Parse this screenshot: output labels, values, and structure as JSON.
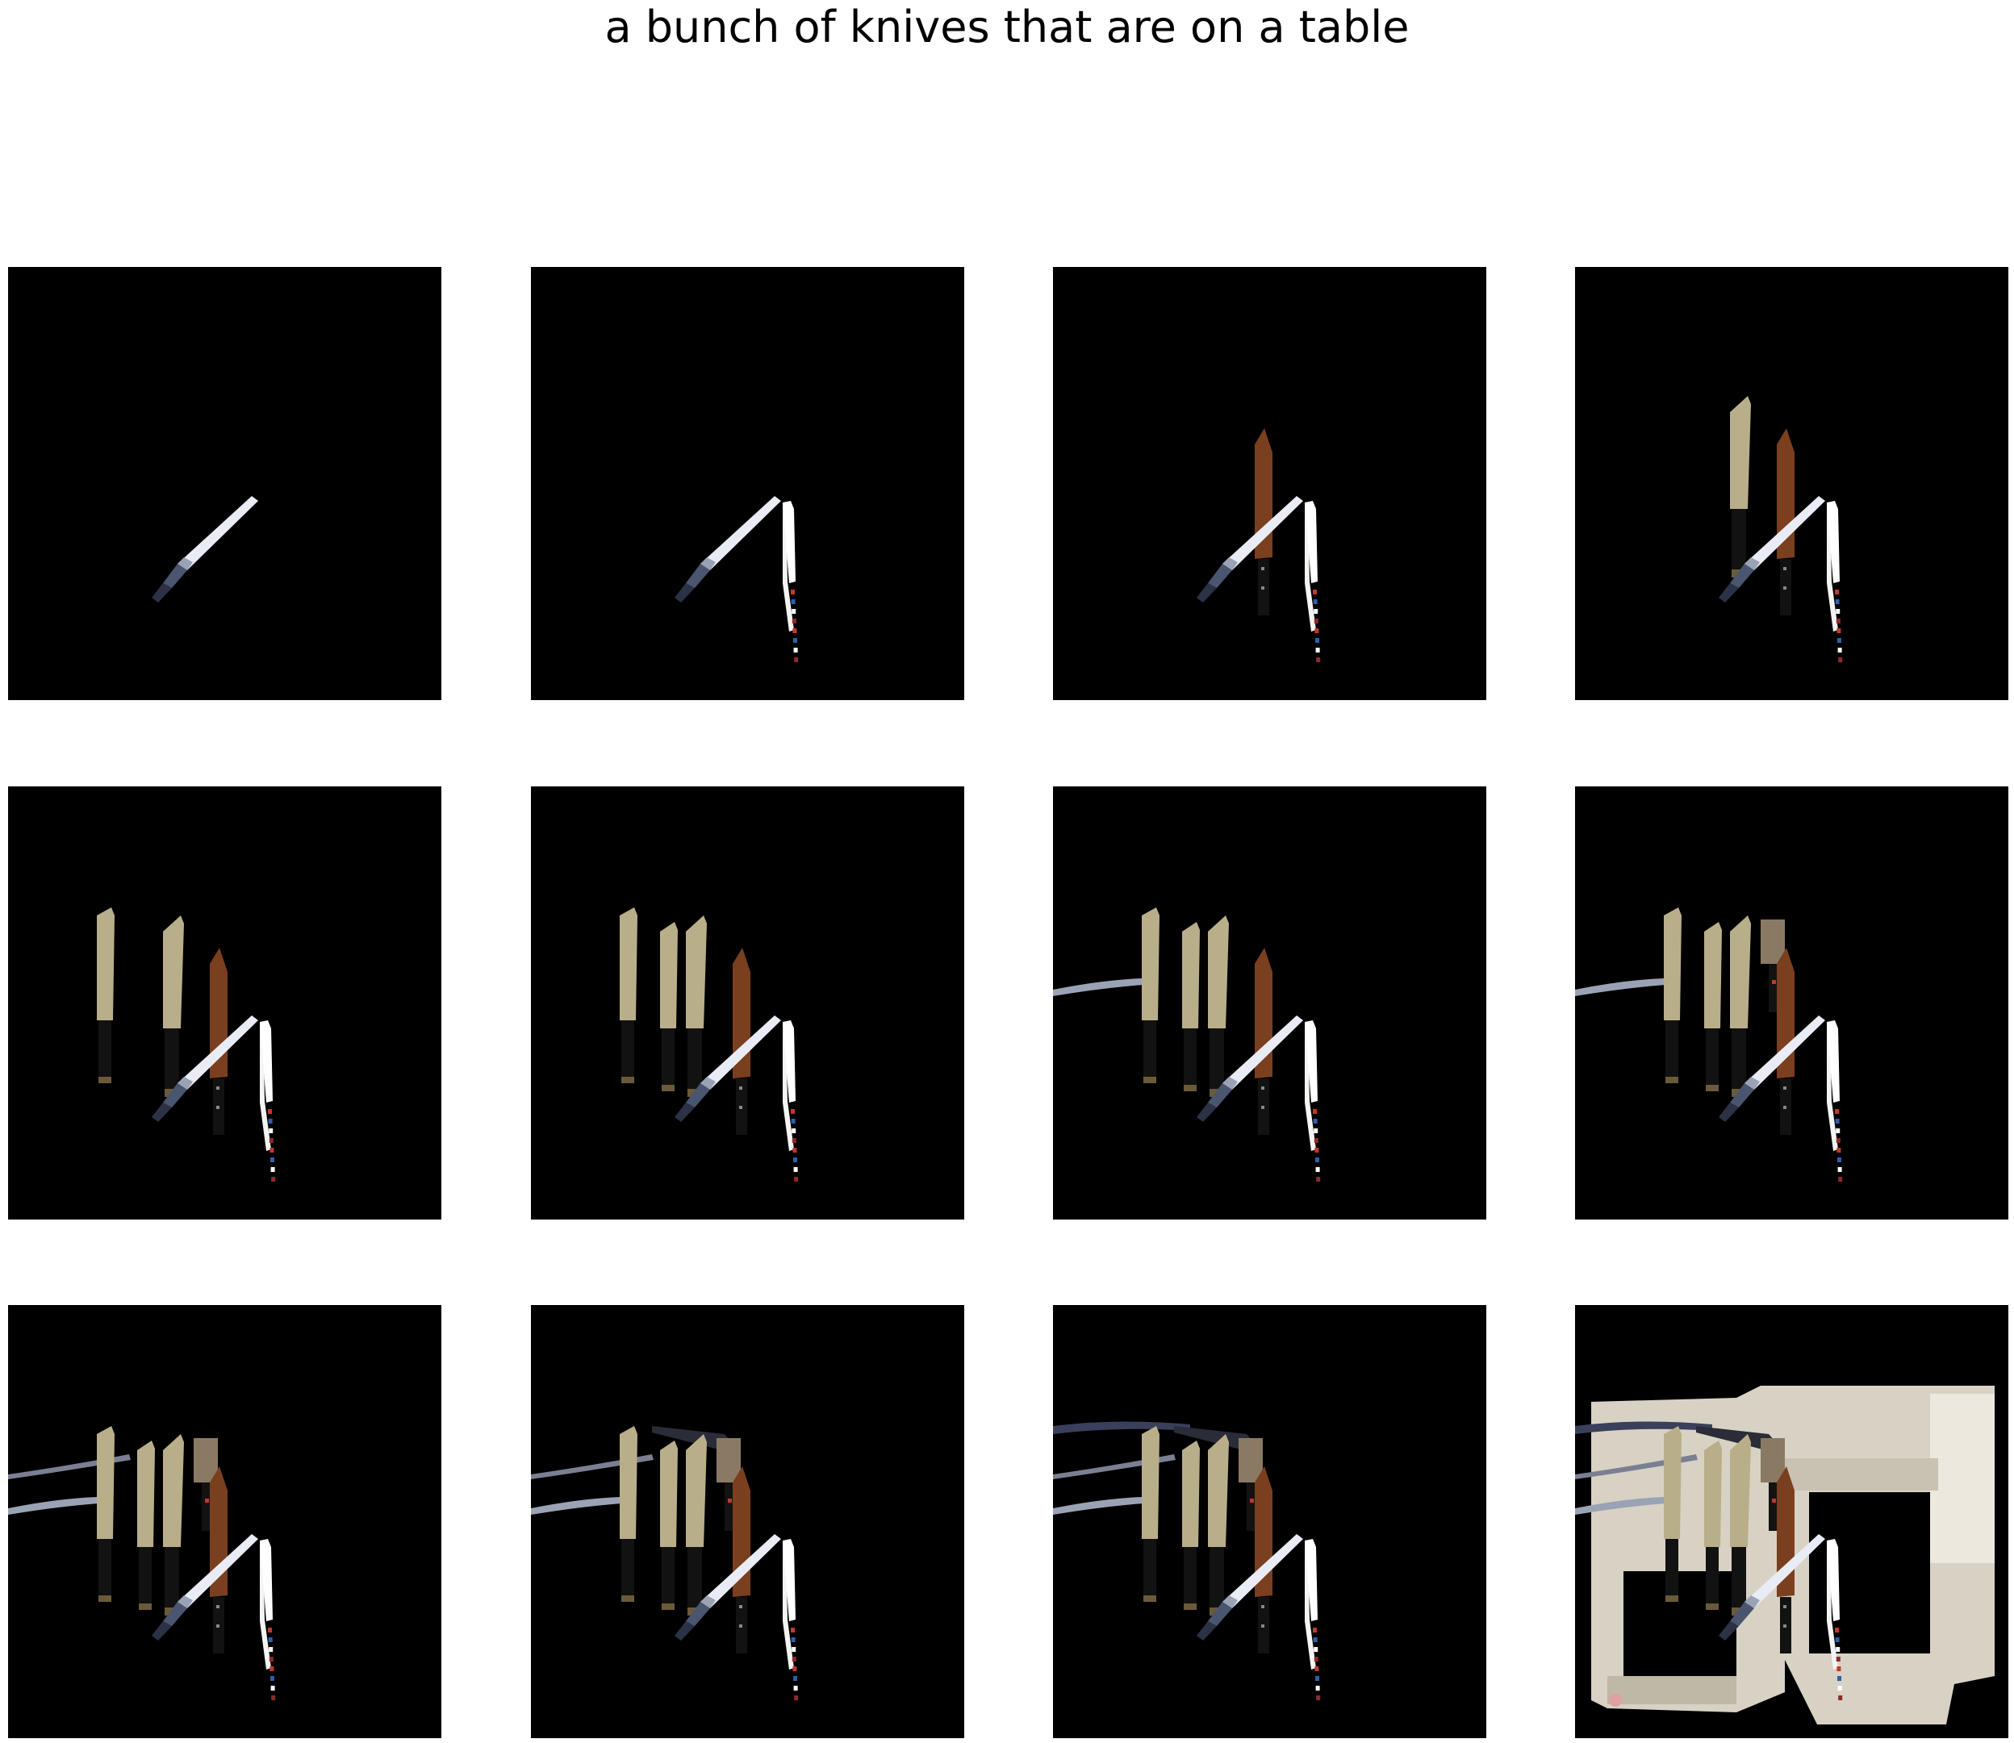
{
  "title": "a bunch of knives that are on a table",
  "panels": [
    {
      "step": 1,
      "objects": [
        "small-knife"
      ]
    },
    {
      "step": 2,
      "objects": [
        "small-knife",
        "white-knife"
      ]
    },
    {
      "step": 3,
      "objects": [
        "small-knife",
        "white-knife",
        "brown-knife"
      ]
    },
    {
      "step": 4,
      "objects": [
        "small-knife",
        "white-knife",
        "brown-knife",
        "santoku-1"
      ]
    },
    {
      "step": 5,
      "objects": [
        "small-knife",
        "white-knife",
        "brown-knife",
        "santoku-1",
        "santoku-2"
      ]
    },
    {
      "step": 6,
      "objects": [
        "small-knife",
        "white-knife",
        "brown-knife",
        "santoku-1",
        "santoku-2",
        "santoku-3"
      ]
    },
    {
      "step": 7,
      "objects": [
        "small-knife",
        "white-knife",
        "brown-knife",
        "santoku-1",
        "santoku-2",
        "santoku-3",
        "long-blade-1"
      ]
    },
    {
      "step": 8,
      "objects": [
        "small-knife",
        "white-knife",
        "brown-knife",
        "santoku-1",
        "santoku-2",
        "santoku-3",
        "long-blade-1",
        "cleaver"
      ]
    },
    {
      "step": 9,
      "objects": [
        "small-knife",
        "white-knife",
        "brown-knife",
        "santoku-1",
        "santoku-2",
        "santoku-3",
        "long-blade-1",
        "cleaver",
        "long-blade-2"
      ]
    },
    {
      "step": 10,
      "objects": [
        "small-knife",
        "white-knife",
        "brown-knife",
        "santoku-1",
        "santoku-2",
        "santoku-3",
        "long-blade-1",
        "cleaver",
        "long-blade-2",
        "dark-knife"
      ]
    },
    {
      "step": 11,
      "objects": [
        "small-knife",
        "white-knife",
        "brown-knife",
        "santoku-1",
        "santoku-2",
        "santoku-3",
        "long-blade-1",
        "cleaver",
        "long-blade-2",
        "dark-knife",
        "long-blade-3"
      ]
    },
    {
      "step": 12,
      "objects": [
        "small-knife",
        "white-knife",
        "brown-knife",
        "santoku-1",
        "santoku-2",
        "santoku-3",
        "long-blade-1",
        "cleaver",
        "long-blade-2",
        "dark-knife",
        "long-blade-3",
        "kitchen-background"
      ]
    }
  ],
  "colors": {
    "background": "#000000",
    "white_blade": "#f4f4f2",
    "brown_blade": "#7a3f1e",
    "santoku_blade": "#b9ae8a",
    "handle": "#121212",
    "steel": "#9aa3b5",
    "kitchen": "#d8d2c4"
  }
}
